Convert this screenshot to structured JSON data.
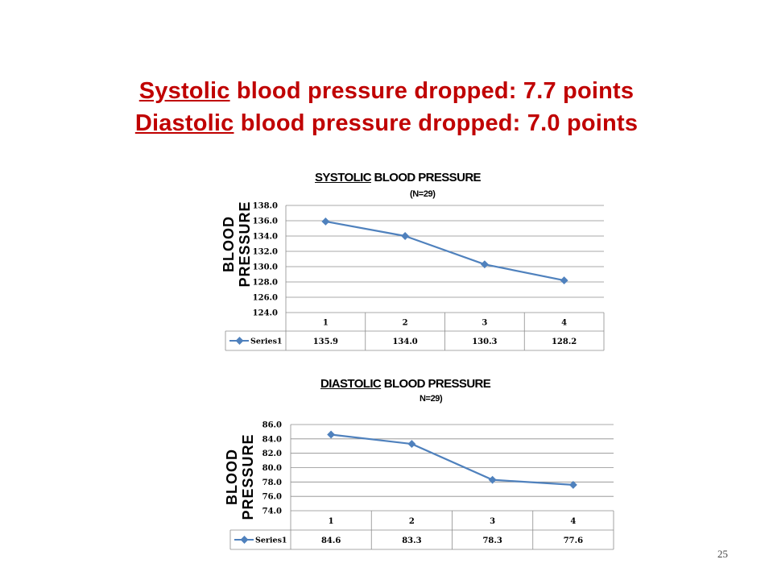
{
  "headline": {
    "line1_word": "Systolic",
    "line1_rest": " blood pressure dropped:  7.7 points",
    "line2_word": "Diastolic",
    "line2_rest": " blood pressure dropped:  7.0 points",
    "color": "#c00000"
  },
  "ylabel_line1": "BLOOD",
  "ylabel_line2": "PRESSURE",
  "page_number": "25",
  "chart_data": [
    {
      "type": "line",
      "title_underlined": "SYSTOLIC",
      "title_rest": "  BLOOD PRESSURE",
      "subtitle": "(N=29)",
      "categories": [
        "1",
        "2",
        "3",
        "4"
      ],
      "series": [
        {
          "name": "Series1",
          "values": [
            135.9,
            134.0,
            130.3,
            128.2
          ]
        }
      ],
      "value_labels": [
        "135.9",
        "134.0",
        "130.3",
        "128.2"
      ],
      "yticks": [
        "124.0",
        "126.0",
        "128.0",
        "130.0",
        "132.0",
        "134.0",
        "136.0",
        "138.0"
      ],
      "ylim": [
        124,
        138
      ],
      "grid": true,
      "data_table": true,
      "line_color": "#4f81bd"
    },
    {
      "type": "line",
      "title_underlined": "DIASTOLIC",
      "title_rest": " BLOOD PRESSURE",
      "subtitle": "N=29)",
      "categories": [
        "1",
        "2",
        "3",
        "4"
      ],
      "series": [
        {
          "name": "Series1",
          "values": [
            84.6,
            83.3,
            78.3,
            77.6
          ]
        }
      ],
      "value_labels": [
        "84.6",
        "83.3",
        "78.3",
        "77.6"
      ],
      "yticks": [
        "74.0",
        "76.0",
        "78.0",
        "80.0",
        "82.0",
        "84.0",
        "86.0"
      ],
      "ylim": [
        74,
        86
      ],
      "grid": true,
      "data_table": true,
      "line_color": "#4f81bd"
    }
  ]
}
